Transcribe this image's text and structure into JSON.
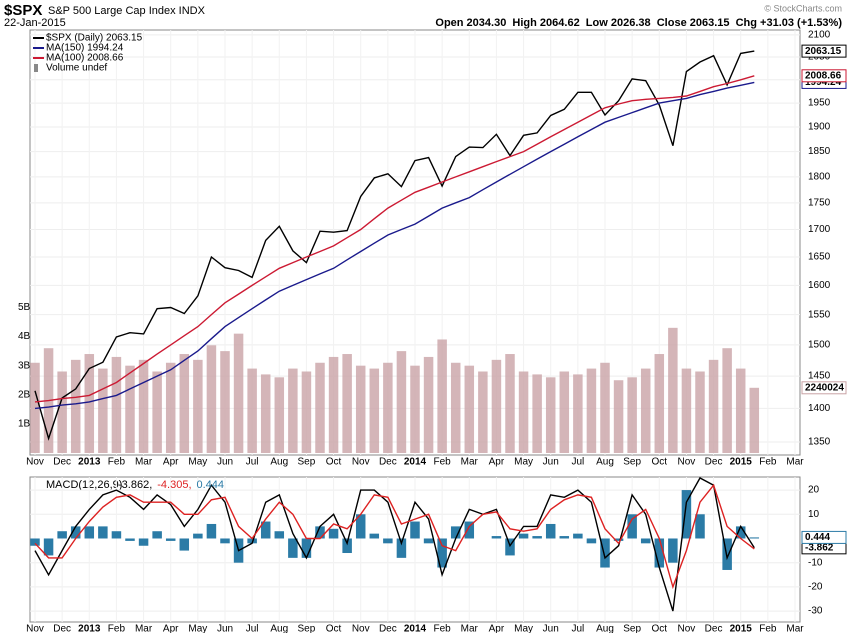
{
  "chart_data": [
    {
      "type": "line",
      "log": true,
      "grid": true,
      "title": "$SPX",
      "subtitle": "S&P 500 Large Cap Index INDX",
      "date": "22-Jan-2015",
      "quote": "Open 2034.30  High 2064.62  Low 2026.38  Close 2063.15  Chg +31.03 (+1.53%)",
      "credit": "© StockCharts.com",
      "categories": [
        "Nov",
        null,
        "Dec",
        null,
        "2013",
        null,
        "Feb",
        null,
        "Mar",
        null,
        "Apr",
        null,
        "May",
        null,
        "Jun",
        null,
        "Jul",
        null,
        "Aug",
        null,
        "Sep",
        null,
        "Oct",
        null,
        "Nov",
        null,
        "Dec",
        null,
        "2014",
        null,
        "Feb",
        null,
        "Mar",
        null,
        "Apr",
        null,
        "May",
        null,
        "Jun",
        null,
        "Jul",
        null,
        "Aug",
        null,
        "Sep",
        null,
        "Oct",
        null,
        "Nov",
        null,
        "Dec",
        null,
        "2015",
        null,
        "Feb",
        null,
        "Mar"
      ],
      "ylim": [
        1331,
        2111
      ],
      "yticks": [
        1350,
        1400,
        1450,
        1500,
        1550,
        1600,
        1650,
        1700,
        1750,
        1800,
        1850,
        1900,
        1950,
        2000,
        2050,
        2100
      ],
      "vlim": [
        0,
        14.6
      ],
      "vticks": [
        {
          "value": 1,
          "label": "1B"
        },
        {
          "value": 2,
          "label": "2B"
        },
        {
          "value": 3,
          "label": "3B"
        },
        {
          "value": 4,
          "label": "4B"
        },
        {
          "value": 5,
          "label": "5B"
        }
      ],
      "series": [
        {
          "name": "$SPX (Daily) 2063.15",
          "color": "#000000",
          "tag": "2063.15",
          "values": [
            1427,
            1355,
            1416,
            1430,
            1462,
            1472,
            1513,
            1520,
            1518,
            1560,
            1562,
            1552,
            1582,
            1650,
            1631,
            1626,
            1614,
            1680,
            1706,
            1661,
            1640,
            1697,
            1695,
            1698,
            1762,
            1798,
            1806,
            1781,
            1832,
            1838,
            1782,
            1840,
            1859,
            1858,
            1885,
            1842,
            1883,
            1888,
            1924,
            1937,
            1973,
            1973,
            1925,
            1955,
            2002,
            1998,
            1946,
            1862,
            2018,
            2039,
            2053,
            1989,
            2058,
            2063.15,
            null,
            null,
            null
          ]
        },
        {
          "name": "MA(150) 1994.24",
          "color": "#1a1a8c",
          "tag": "1994.24",
          "values": [
            1400,
            1402,
            1405,
            1407,
            1410,
            1415,
            1420,
            1430,
            1440,
            1450,
            1460,
            1475,
            1490,
            1510,
            1530,
            1545,
            1560,
            1575,
            1590,
            1600,
            1610,
            1620,
            1630,
            1645,
            1660,
            1675,
            1690,
            1700,
            1710,
            1725,
            1740,
            1750,
            1760,
            1775,
            1790,
            1805,
            1820,
            1835,
            1850,
            1865,
            1880,
            1895,
            1910,
            1920,
            1930,
            1940,
            1950,
            1955,
            1960,
            1968,
            1975,
            1982,
            1988,
            1994.24,
            null,
            null,
            null
          ]
        },
        {
          "name": "MA(100) 2008.66",
          "color": "#cc1a33",
          "tag": "2008.66",
          "values": [
            1410,
            1412,
            1415,
            1417,
            1420,
            1430,
            1440,
            1455,
            1470,
            1485,
            1500,
            1515,
            1530,
            1550,
            1570,
            1585,
            1600,
            1615,
            1630,
            1640,
            1650,
            1660,
            1670,
            1685,
            1700,
            1720,
            1740,
            1755,
            1770,
            1780,
            1790,
            1800,
            1810,
            1820,
            1830,
            1840,
            1850,
            1865,
            1880,
            1895,
            1910,
            1925,
            1940,
            1948,
            1955,
            1958,
            1960,
            1962,
            1965,
            1975,
            1985,
            1992,
            2000,
            2008.66,
            null,
            null,
            null
          ]
        },
        {
          "name": "Volume undef",
          "color": "#c9a3a6",
          "axis": "volume",
          "tag": "2240024",
          "values": [
            3.1,
            3.6,
            2.8,
            3.2,
            3.4,
            2.9,
            3.3,
            3.0,
            3.2,
            2.8,
            3.1,
            3.4,
            3.2,
            3.7,
            3.5,
            4.1,
            2.9,
            2.7,
            2.6,
            2.9,
            2.8,
            3.1,
            3.3,
            3.4,
            3.0,
            2.9,
            3.1,
            3.5,
            3.0,
            3.3,
            3.9,
            3.1,
            3.0,
            2.8,
            3.2,
            3.4,
            2.8,
            2.7,
            2.6,
            2.8,
            2.7,
            2.9,
            3.1,
            2.5,
            2.6,
            2.9,
            3.4,
            4.3,
            2.9,
            2.8,
            3.2,
            3.6,
            2.9,
            2.240024,
            null,
            null,
            null
          ]
        }
      ]
    },
    {
      "type": "macd",
      "grid": true,
      "legend_title": "MACD(12,26,9)",
      "categories": [
        "Nov",
        null,
        "Dec",
        null,
        "2013",
        null,
        "Feb",
        null,
        "Mar",
        null,
        "Apr",
        null,
        "May",
        null,
        "Jun",
        null,
        "Jul",
        null,
        "Aug",
        null,
        "Sep",
        null,
        "Oct",
        null,
        "Nov",
        null,
        "Dec",
        null,
        "2014",
        null,
        "Feb",
        null,
        "Mar",
        null,
        "Apr",
        null,
        "May",
        null,
        "Jun",
        null,
        "Jul",
        null,
        "Aug",
        null,
        "Sep",
        null,
        "Oct",
        null,
        "Nov",
        null,
        "Dec",
        null,
        "2015",
        null,
        "Feb",
        null,
        "Mar"
      ],
      "ylim": [
        -34.5,
        25.4
      ],
      "yticks": [
        -30,
        -20,
        -10,
        10,
        20
      ],
      "series": [
        {
          "name": "-3.862,",
          "color": "#000000",
          "tag": "-3.862",
          "values": [
            -5,
            -15,
            -5,
            5,
            12,
            18,
            20,
            17,
            12,
            18,
            14,
            5,
            12,
            22,
            15,
            -5,
            -2,
            15,
            18,
            2,
            -8,
            5,
            10,
            -2,
            20,
            20,
            15,
            -2,
            15,
            8,
            -15,
            0,
            12,
            10,
            12,
            -3,
            5,
            5,
            18,
            17,
            20,
            15,
            -8,
            -3,
            18,
            10,
            -12,
            -30,
            15,
            25,
            22,
            -8,
            5,
            -3.862,
            null,
            null,
            null
          ]
        },
        {
          "name": "-4.305,",
          "color": "#dd2222",
          "values": [
            -2,
            -8,
            -8,
            0,
            7,
            13,
            17,
            18,
            15,
            15,
            15,
            10,
            10,
            16,
            17,
            5,
            0,
            8,
            15,
            10,
            0,
            0,
            6,
            4,
            10,
            18,
            17,
            6,
            8,
            10,
            -3,
            -5,
            5,
            10,
            11,
            4,
            3,
            4,
            12,
            16,
            18,
            17,
            4,
            -2,
            8,
            12,
            0,
            -20,
            -5,
            15,
            22,
            5,
            0,
            -4.305,
            null,
            null,
            null
          ]
        },
        {
          "name": "0.444",
          "color": "#2b7ba6",
          "kind": "histogram",
          "tag": "0.444",
          "values": [
            -3,
            -7,
            3,
            5,
            5,
            5,
            3,
            -1,
            -3,
            3,
            -1,
            -5,
            2,
            6,
            -2,
            -10,
            -2,
            7,
            3,
            -8,
            -8,
            5,
            4,
            -6,
            10,
            2,
            -2,
            -8,
            7,
            -2,
            -12,
            5,
            7,
            0,
            1,
            -7,
            2,
            1,
            6,
            1,
            2,
            -2,
            -12,
            -1,
            10,
            -2,
            -12,
            -10,
            20,
            10,
            0,
            -13,
            5,
            0.444,
            null,
            null,
            null
          ]
        }
      ]
    }
  ]
}
